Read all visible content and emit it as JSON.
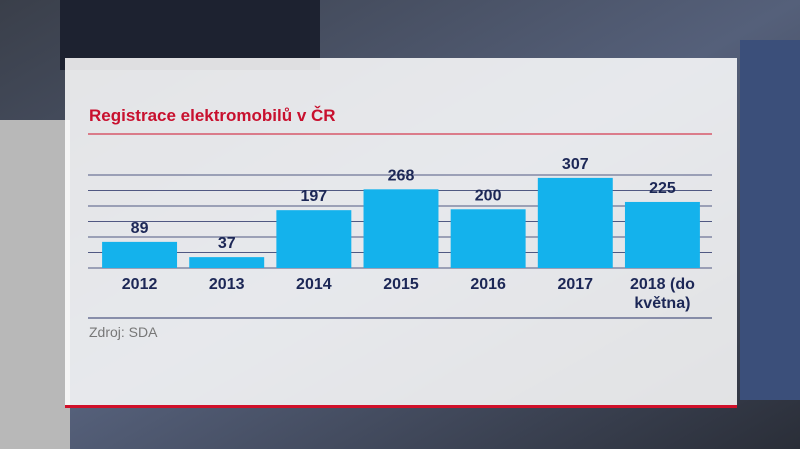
{
  "chart_data": {
    "type": "bar",
    "title": "Registrace elektromobilů v ČR",
    "categories": [
      "2012",
      "2013",
      "2014",
      "2015",
      "2016",
      "2017",
      "2018 (do května)"
    ],
    "values": [
      89,
      37,
      197,
      268,
      200,
      307,
      225
    ],
    "color": "#14b2ec",
    "ylim": [
      0,
      310
    ],
    "grid": true,
    "source": "Zdroj: SDA"
  }
}
